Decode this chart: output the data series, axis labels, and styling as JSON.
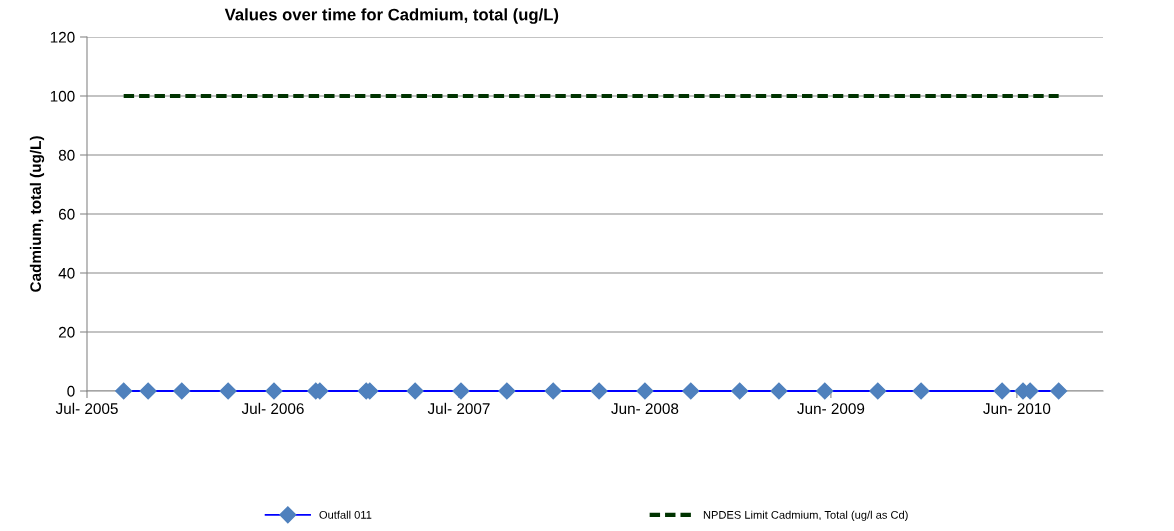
{
  "chart_data": {
    "type": "line",
    "title": "Values over time for Cadmium, total (ug/L)",
    "ylabel": "Cadmium, total (ug/L)",
    "x": [
      "2005-09-11",
      "2005-10-29",
      "2006-01-03",
      "2006-04-04",
      "2006-07-03",
      "2006-09-23",
      "2006-10-01",
      "2006-12-31",
      "2007-01-07",
      "2007-04-06",
      "2007-07-05",
      "2007-10-03",
      "2008-01-02",
      "2008-04-01",
      "2008-06-30",
      "2008-09-28",
      "2009-01-02",
      "2009-03-20",
      "2009-06-18",
      "2009-09-30",
      "2009-12-24",
      "2010-06-01",
      "2010-07-12",
      "2010-07-26",
      "2010-09-20"
    ],
    "series": [
      {
        "name": "Outfall 011",
        "color": "#0000ff",
        "marker": "diamond",
        "line_style": "solid",
        "values": [
          0,
          0,
          0,
          0,
          0,
          0,
          0,
          0,
          0,
          0,
          0,
          0,
          0,
          0,
          0,
          0,
          0,
          0,
          0,
          0,
          0,
          0,
          0,
          0,
          0
        ]
      },
      {
        "name": "NPDES Limit Cadmium, Total (ug/l as Cd)",
        "color": "#003300",
        "marker": "none",
        "line_style": "dashed",
        "values": [
          100,
          100,
          100,
          100,
          100,
          100,
          100,
          100,
          100,
          100,
          100,
          100,
          100,
          100,
          100,
          100,
          100,
          100,
          100,
          100,
          100,
          100,
          100,
          100,
          100
        ]
      }
    ],
    "xlim": [
      "2005-07-01",
      "2010-12-16"
    ],
    "xticks": [
      {
        "value": "2005-07-01",
        "label": "Jul- 2005"
      },
      {
        "value": "2006-07-01",
        "label": "Jul- 2006"
      },
      {
        "value": "2007-07-01",
        "label": "Jul- 2007"
      },
      {
        "value": "2008-06-30",
        "label": "Jun- 2008"
      },
      {
        "value": "2009-06-30",
        "label": "Jun- 2009"
      },
      {
        "value": "2010-06-30",
        "label": "Jun- 2010"
      }
    ],
    "ylim": [
      0,
      120
    ],
    "yticks": [
      0,
      20,
      40,
      60,
      80,
      100,
      120
    ],
    "grid": "y",
    "legend": "bottom"
  }
}
